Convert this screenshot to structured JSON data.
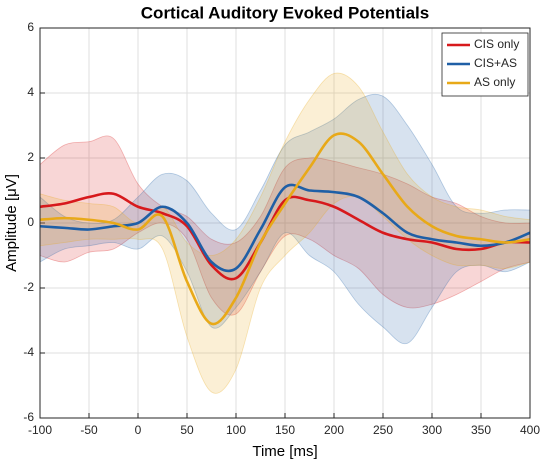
{
  "chart_data": {
    "type": "line",
    "title": "Cortical Auditory Evoked Potentials",
    "x_label": "Time [ms]",
    "y_label": "Amplitude [μV]",
    "x": [
      -100,
      -75,
      -50,
      -25,
      0,
      25,
      50,
      75,
      100,
      125,
      150,
      175,
      200,
      225,
      250,
      275,
      300,
      325,
      350,
      375,
      400
    ],
    "xlim": [
      -100,
      400
    ],
    "xticks": [
      -100,
      -50,
      0,
      50,
      100,
      150,
      200,
      250,
      300,
      350,
      400
    ],
    "ylim": [
      -6,
      6
    ],
    "yticks": [
      -6,
      -4,
      -2,
      0,
      2,
      4,
      6
    ],
    "grid": true,
    "legend": "upper right",
    "series": [
      {
        "name": "CIS only",
        "color": "#d7191c",
        "values": [
          0.5,
          0.6,
          0.8,
          0.9,
          0.5,
          0.3,
          -0.1,
          -1.3,
          -1.7,
          -0.6,
          0.7,
          0.7,
          0.5,
          0.1,
          -0.3,
          -0.5,
          -0.6,
          -0.8,
          -0.8,
          -0.6,
          -0.6
        ],
        "upper": [
          1.8,
          2.4,
          2.5,
          2.6,
          1.2,
          0.5,
          0.2,
          -0.5,
          -0.6,
          0.2,
          1.7,
          2.0,
          1.9,
          1.7,
          1.5,
          1.2,
          0.8,
          0.6,
          0.2,
          0.0,
          0.0
        ],
        "lower": [
          -1.0,
          -1.2,
          -0.9,
          -0.8,
          -0.3,
          0.0,
          -0.5,
          -2.3,
          -2.8,
          -1.5,
          -0.4,
          -0.5,
          -1.0,
          -1.4,
          -2.2,
          -2.6,
          -2.5,
          -2.2,
          -1.8,
          -1.4,
          -1.2
        ]
      },
      {
        "name": "CIS+AS",
        "color": "#1f5fa6",
        "values": [
          -0.1,
          -0.15,
          -0.2,
          -0.1,
          0.0,
          0.5,
          0.0,
          -1.2,
          -1.4,
          -0.2,
          1.1,
          1.0,
          0.95,
          0.8,
          0.3,
          -0.3,
          -0.5,
          -0.6,
          -0.7,
          -0.6,
          -0.3
        ],
        "upper": [
          0.8,
          0.2,
          0.0,
          0.1,
          0.8,
          1.5,
          1.3,
          0.3,
          -0.2,
          1.0,
          2.4,
          2.8,
          3.2,
          3.8,
          3.9,
          3.0,
          1.8,
          0.5,
          0.3,
          0.4,
          0.4
        ],
        "lower": [
          -1.2,
          -0.8,
          -0.7,
          -0.6,
          -0.8,
          -0.4,
          -1.5,
          -3.2,
          -2.6,
          -1.5,
          -0.3,
          -1.0,
          -1.5,
          -2.5,
          -3.2,
          -3.7,
          -2.6,
          -1.5,
          -1.3,
          -1.5,
          -1.2
        ]
      },
      {
        "name": "AS only",
        "color": "#e8a918",
        "values": [
          0.1,
          0.15,
          0.1,
          0.0,
          -0.2,
          0.2,
          -1.8,
          -3.1,
          -2.3,
          -0.6,
          0.6,
          1.7,
          2.7,
          2.5,
          1.5,
          0.5,
          -0.1,
          -0.4,
          -0.5,
          -0.6,
          -0.5
        ],
        "upper": [
          0.9,
          0.7,
          0.6,
          0.5,
          0.0,
          0.5,
          -0.6,
          -1.0,
          -0.5,
          0.8,
          2.5,
          3.8,
          4.6,
          4.2,
          2.8,
          1.5,
          0.8,
          0.5,
          0.4,
          0.2,
          0.1
        ],
        "lower": [
          -0.7,
          -0.6,
          -0.5,
          -0.5,
          -0.5,
          -0.8,
          -3.5,
          -5.2,
          -4.5,
          -2.0,
          -1.0,
          -0.3,
          0.6,
          0.8,
          0.2,
          -0.5,
          -1.0,
          -1.3,
          -1.3,
          -1.4,
          -1.2
        ]
      }
    ]
  }
}
